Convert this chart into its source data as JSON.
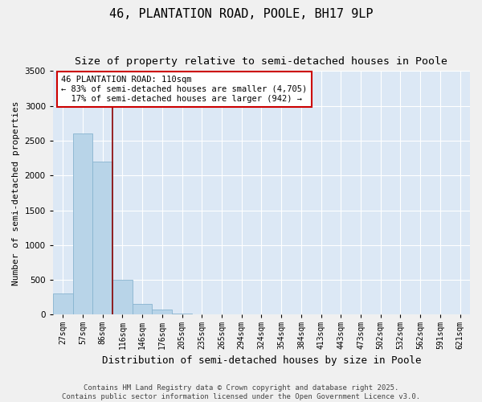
{
  "title_line1": "46, PLANTATION ROAD, POOLE, BH17 9LP",
  "title_line2": "Size of property relative to semi-detached houses in Poole",
  "xlabel": "Distribution of semi-detached houses by size in Poole",
  "ylabel": "Number of semi-detached properties",
  "categories": [
    "27sqm",
    "57sqm",
    "86sqm",
    "116sqm",
    "146sqm",
    "176sqm",
    "205sqm",
    "235sqm",
    "265sqm",
    "294sqm",
    "324sqm",
    "354sqm",
    "384sqm",
    "413sqm",
    "443sqm",
    "473sqm",
    "502sqm",
    "532sqm",
    "562sqm",
    "591sqm",
    "621sqm"
  ],
  "values": [
    300,
    2600,
    2200,
    500,
    150,
    75,
    20,
    5,
    2,
    0,
    0,
    0,
    0,
    0,
    0,
    0,
    0,
    0,
    0,
    0,
    0
  ],
  "bar_color": "#b8d4e8",
  "bar_edgecolor": "#88b4d0",
  "vline_pos": 2.5,
  "vline_color": "#8b0000",
  "annotation_text": "46 PLANTATION ROAD: 110sqm\n← 83% of semi-detached houses are smaller (4,705)\n  17% of semi-detached houses are larger (942) →",
  "annotation_box_facecolor": "white",
  "annotation_box_edgecolor": "#cc0000",
  "ylim_max": 3500,
  "plot_bg_color": "#dce8f5",
  "fig_bg_color": "#f0f0f0",
  "grid_color": "#ffffff",
  "footer_line1": "Contains HM Land Registry data © Crown copyright and database right 2025.",
  "footer_line2": "Contains public sector information licensed under the Open Government Licence v3.0.",
  "title_fontsize": 11,
  "subtitle_fontsize": 9.5,
  "ylabel_fontsize": 8,
  "xlabel_fontsize": 9,
  "tick_fontsize": 7,
  "annotation_fontsize": 7.5,
  "footer_fontsize": 6.5
}
